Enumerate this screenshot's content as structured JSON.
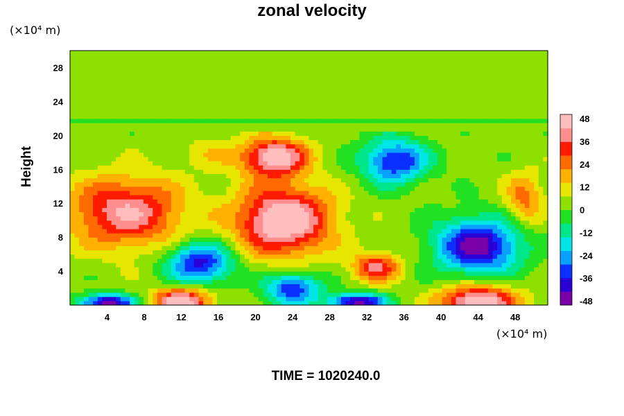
{
  "chart_data": {
    "type": "heatmap",
    "title": "zonal velocity",
    "xlabel": "",
    "ylabel": "Height",
    "x_unit": "(×10⁴ m)",
    "y_unit": "(×10⁴ m)",
    "x_ticks": [
      4,
      8,
      12,
      16,
      20,
      24,
      28,
      32,
      36,
      40,
      44,
      48
    ],
    "y_ticks": [
      4,
      8,
      12,
      16,
      20,
      24,
      28
    ],
    "xlim": [
      0,
      51.5
    ],
    "ylim": [
      0,
      30
    ],
    "colorbar": {
      "ticks": [
        48,
        36,
        24,
        12,
        0,
        -12,
        -24,
        -36,
        -48
      ],
      "range": [
        -50,
        50
      ],
      "colors": [
        "#7a00a8",
        "#2b00d6",
        "#0a2fff",
        "#0aa0ff",
        "#00e6e6",
        "#00e68a",
        "#22e022",
        "#8ee000",
        "#e6e600",
        "#ffb000",
        "#ff6a00",
        "#ff1a00",
        "#ff8f8f",
        "#ffbebe"
      ]
    },
    "features": [
      {
        "x": 6,
        "y": 11,
        "value": 40
      },
      {
        "x": 23,
        "y": 10,
        "value": 52
      },
      {
        "x": 22,
        "y": 17.5,
        "value": 48
      },
      {
        "x": 14,
        "y": 5,
        "value": -42
      },
      {
        "x": 44,
        "y": 7,
        "value": -50
      },
      {
        "x": 35,
        "y": 17,
        "value": -40
      },
      {
        "x": 33,
        "y": 4.5,
        "value": 34
      },
      {
        "x": 44,
        "y": 0.5,
        "value": 50
      },
      {
        "x": 12,
        "y": 0.5,
        "value": 48
      },
      {
        "x": 4,
        "y": 0.3,
        "value": -50
      },
      {
        "x": 31,
        "y": 0.4,
        "value": -50
      },
      {
        "x": 24,
        "y": 2,
        "value": -38
      },
      {
        "x": 49,
        "y": 12.5,
        "value": 22
      },
      {
        "x": 15,
        "y": 18,
        "value": 8
      }
    ]
  },
  "footer": {
    "time_label": "TIME = 1020240.0"
  }
}
